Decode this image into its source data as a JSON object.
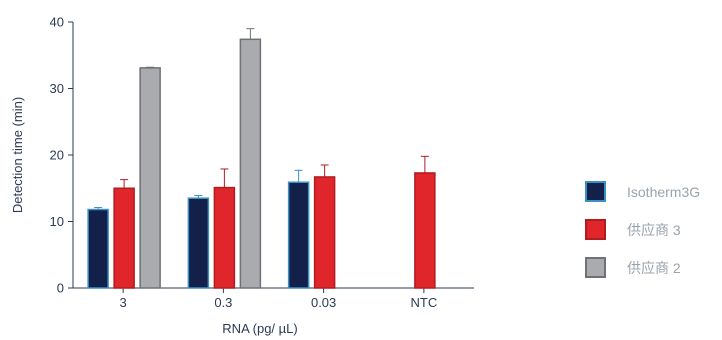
{
  "chart_data": {
    "type": "bar",
    "title": "",
    "xlabel": "RNA (pg/ µL)",
    "ylabel": "Detection time (min)",
    "ylim": [
      0,
      40
    ],
    "yticks": [
      0,
      10,
      20,
      30,
      40
    ],
    "categories": [
      "3",
      "0.3",
      "0.03",
      "NTC"
    ],
    "series": [
      {
        "name": "Isotherm3G",
        "color": "#12204a",
        "edge": "#3a8fc4",
        "values": [
          11.8,
          13.5,
          15.9,
          null
        ],
        "errors": [
          0.3,
          0.4,
          1.8,
          null
        ]
      },
      {
        "name": "供应商 3",
        "color": "#e0262b",
        "edge": "#b01c20",
        "values": [
          15.0,
          15.1,
          16.7,
          17.3
        ],
        "errors": [
          1.3,
          2.8,
          1.8,
          2.5
        ]
      },
      {
        "name": "供应商 2",
        "color": "#a9abae",
        "edge": "#6f7174",
        "values": [
          33.1,
          37.4,
          null,
          null
        ],
        "errors": [
          0.1,
          1.6,
          null,
          null
        ]
      }
    ],
    "legend_position": "right",
    "grid": false
  }
}
